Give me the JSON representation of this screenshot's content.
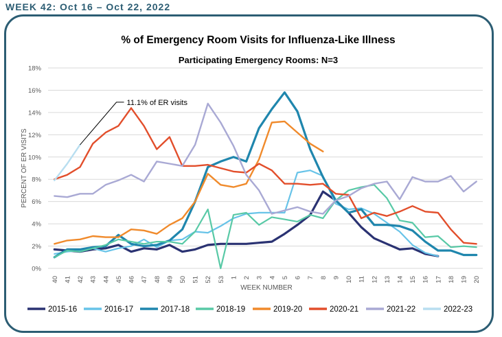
{
  "header": {
    "week_label": "WEEK 42: Oct 16 – Oct 22, 2022"
  },
  "chart_data": {
    "type": "line",
    "title": "% of Emergency Room Visits for Influenza-Like Illness",
    "subtitle": "Participating Emergency Rooms: N=3",
    "xlabel": "WEEK NUMBER",
    "ylabel": "PERCENT OF ER VISITS",
    "ylim": [
      0,
      18
    ],
    "y_ticks": [
      "0%",
      "2%",
      "4%",
      "6%",
      "8%",
      "10%",
      "12%",
      "14%",
      "16%",
      "18%"
    ],
    "y_tick_values": [
      0,
      2,
      4,
      6,
      8,
      10,
      12,
      14,
      16,
      18
    ],
    "grid": true,
    "legend_position": "bottom",
    "categories": [
      "40",
      "41",
      "42",
      "43",
      "44",
      "45",
      "46",
      "47",
      "48",
      "49",
      "50",
      "51",
      "52",
      "53",
      "1",
      "2",
      "3",
      "4",
      "5",
      "6",
      "7",
      "8",
      "9",
      "10",
      "11",
      "12",
      "13",
      "14",
      "15",
      "16",
      "17",
      "18",
      "19",
      "20"
    ],
    "annotation": {
      "text": "11.1% of ER visits",
      "x": "42",
      "y": 11.1
    },
    "series": [
      {
        "name": "2015-16",
        "color": "#2a3272",
        "width": 3.2,
        "values": [
          1.7,
          1.6,
          1.5,
          1.7,
          1.8,
          2.1,
          1.5,
          1.8,
          1.7,
          2.1,
          1.5,
          1.7,
          2.1,
          2.2,
          2.2,
          2.2,
          2.3,
          2.4,
          3.1,
          3.9,
          4.8,
          6.9,
          6.1,
          5.0,
          3.7,
          2.7,
          2.2,
          1.7,
          1.8,
          1.3,
          1.1,
          null,
          null,
          null
        ]
      },
      {
        "name": "2016-17",
        "color": "#67c3e8",
        "width": 2.2,
        "values": [
          1.3,
          1.5,
          1.6,
          1.8,
          1.5,
          1.8,
          2.0,
          2.6,
          1.9,
          2.5,
          2.6,
          3.3,
          3.2,
          3.8,
          4.5,
          4.9,
          5.0,
          5.0,
          5.0,
          8.6,
          8.8,
          8.3,
          5.8,
          5.3,
          5.4,
          4.9,
          4.1,
          3.3,
          2.1,
          1.4,
          1.1,
          null,
          null,
          null
        ]
      },
      {
        "name": "2017-18",
        "color": "#1f86ad",
        "width": 3.2,
        "values": [
          1.0,
          1.7,
          1.7,
          1.9,
          2.0,
          3.0,
          2.2,
          2.0,
          2.1,
          2.5,
          3.5,
          6.0,
          9.1,
          9.6,
          10.0,
          9.6,
          12.6,
          14.3,
          15.8,
          14.1,
          10.7,
          8.2,
          6.1,
          5.0,
          5.3,
          3.9,
          3.9,
          3.8,
          3.4,
          2.4,
          1.6,
          1.6,
          1.2,
          1.2
        ]
      },
      {
        "name": "2018-19",
        "color": "#58c9a6",
        "width": 2.2,
        "values": [
          1.0,
          1.6,
          1.5,
          1.8,
          2.1,
          2.6,
          2.4,
          2.2,
          2.4,
          2.4,
          2.2,
          3.3,
          5.3,
          0.0,
          4.8,
          5.0,
          3.9,
          4.6,
          4.4,
          4.2,
          4.8,
          4.5,
          6.1,
          7.0,
          7.3,
          7.5,
          6.3,
          4.3,
          4.1,
          2.8,
          2.9,
          1.9,
          2.0,
          1.9
        ]
      },
      {
        "name": "2019-20",
        "color": "#f08a2b",
        "width": 2.4,
        "values": [
          2.2,
          2.5,
          2.6,
          2.9,
          2.8,
          2.8,
          3.5,
          3.4,
          3.1,
          3.9,
          4.5,
          6.0,
          8.5,
          7.5,
          7.3,
          7.6,
          9.8,
          13.1,
          13.2,
          12.2,
          11.2,
          10.5,
          null,
          null,
          null,
          null,
          null,
          null,
          null,
          null,
          null,
          null,
          null,
          null
        ]
      },
      {
        "name": "2020-21",
        "color": "#e24e2b",
        "width": 2.4,
        "values": [
          8.0,
          8.4,
          9.1,
          11.2,
          12.2,
          12.8,
          14.4,
          12.8,
          10.7,
          11.8,
          9.2,
          9.2,
          9.3,
          9.0,
          8.7,
          8.6,
          9.4,
          8.8,
          7.6,
          7.6,
          7.5,
          7.6,
          6.7,
          6.6,
          4.5,
          5.0,
          4.7,
          5.1,
          5.6,
          5.1,
          5.0,
          3.5,
          2.3,
          2.2
        ]
      },
      {
        "name": "2021-22",
        "color": "#a9a9d4",
        "width": 2.4,
        "values": [
          6.5,
          6.4,
          6.7,
          6.7,
          7.5,
          7.9,
          8.4,
          7.8,
          9.6,
          9.4,
          9.2,
          11.1,
          14.8,
          13.1,
          11.0,
          8.4,
          7.0,
          4.9,
          5.2,
          5.5,
          5.1,
          4.9,
          6.1,
          6.5,
          7.2,
          7.6,
          7.8,
          6.2,
          8.2,
          7.8,
          7.8,
          8.3,
          6.9,
          7.8
        ]
      },
      {
        "name": "2022-23",
        "color": "#b8def0",
        "width": 2.4,
        "values": [
          7.9,
          9.4,
          11.1,
          null,
          null,
          null,
          null,
          null,
          null,
          null,
          null,
          null,
          null,
          null,
          null,
          null,
          null,
          null,
          null,
          null,
          null,
          null,
          null,
          null,
          null,
          null,
          null,
          null,
          null,
          null,
          null,
          null,
          null,
          null
        ]
      }
    ]
  }
}
